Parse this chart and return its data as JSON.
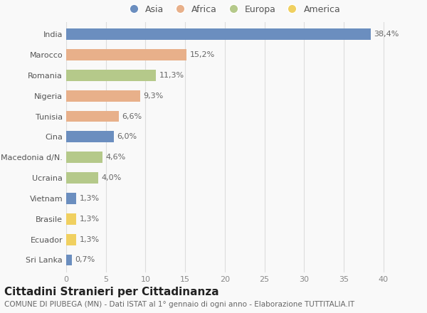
{
  "countries": [
    "India",
    "Marocco",
    "Romania",
    "Nigeria",
    "Tunisia",
    "Cina",
    "Macedonia d/N.",
    "Ucraina",
    "Vietnam",
    "Brasile",
    "Ecuador",
    "Sri Lanka"
  ],
  "values": [
    38.4,
    15.2,
    11.3,
    9.3,
    6.6,
    6.0,
    4.6,
    4.0,
    1.3,
    1.3,
    1.3,
    0.7
  ],
  "labels": [
    "38,4%",
    "15,2%",
    "11,3%",
    "9,3%",
    "6,6%",
    "6,0%",
    "4,6%",
    "4,0%",
    "1,3%",
    "1,3%",
    "1,3%",
    "0,7%"
  ],
  "continents": [
    "Asia",
    "Africa",
    "Europa",
    "Africa",
    "Africa",
    "Asia",
    "Europa",
    "Europa",
    "Asia",
    "America",
    "America",
    "Asia"
  ],
  "colors": {
    "Asia": "#6b8ebf",
    "Africa": "#e8b08a",
    "Europa": "#b5c98a",
    "America": "#f0d060"
  },
  "xlim": [
    0,
    42
  ],
  "xticks": [
    0,
    5,
    10,
    15,
    20,
    25,
    30,
    35,
    40
  ],
  "title": "Cittadini Stranieri per Cittadinanza",
  "subtitle": "COMUNE DI PIUBEGA (MN) - Dati ISTAT al 1° gennaio di ogni anno - Elaborazione TUTTITALIA.IT",
  "bg_color": "#f9f9f9",
  "grid_color": "#dddddd",
  "bar_height": 0.55,
  "label_fontsize": 8,
  "ytick_fontsize": 8,
  "xtick_fontsize": 8,
  "title_fontsize": 11,
  "subtitle_fontsize": 7.5,
  "legend_order": [
    "Asia",
    "Africa",
    "Europa",
    "America"
  ]
}
